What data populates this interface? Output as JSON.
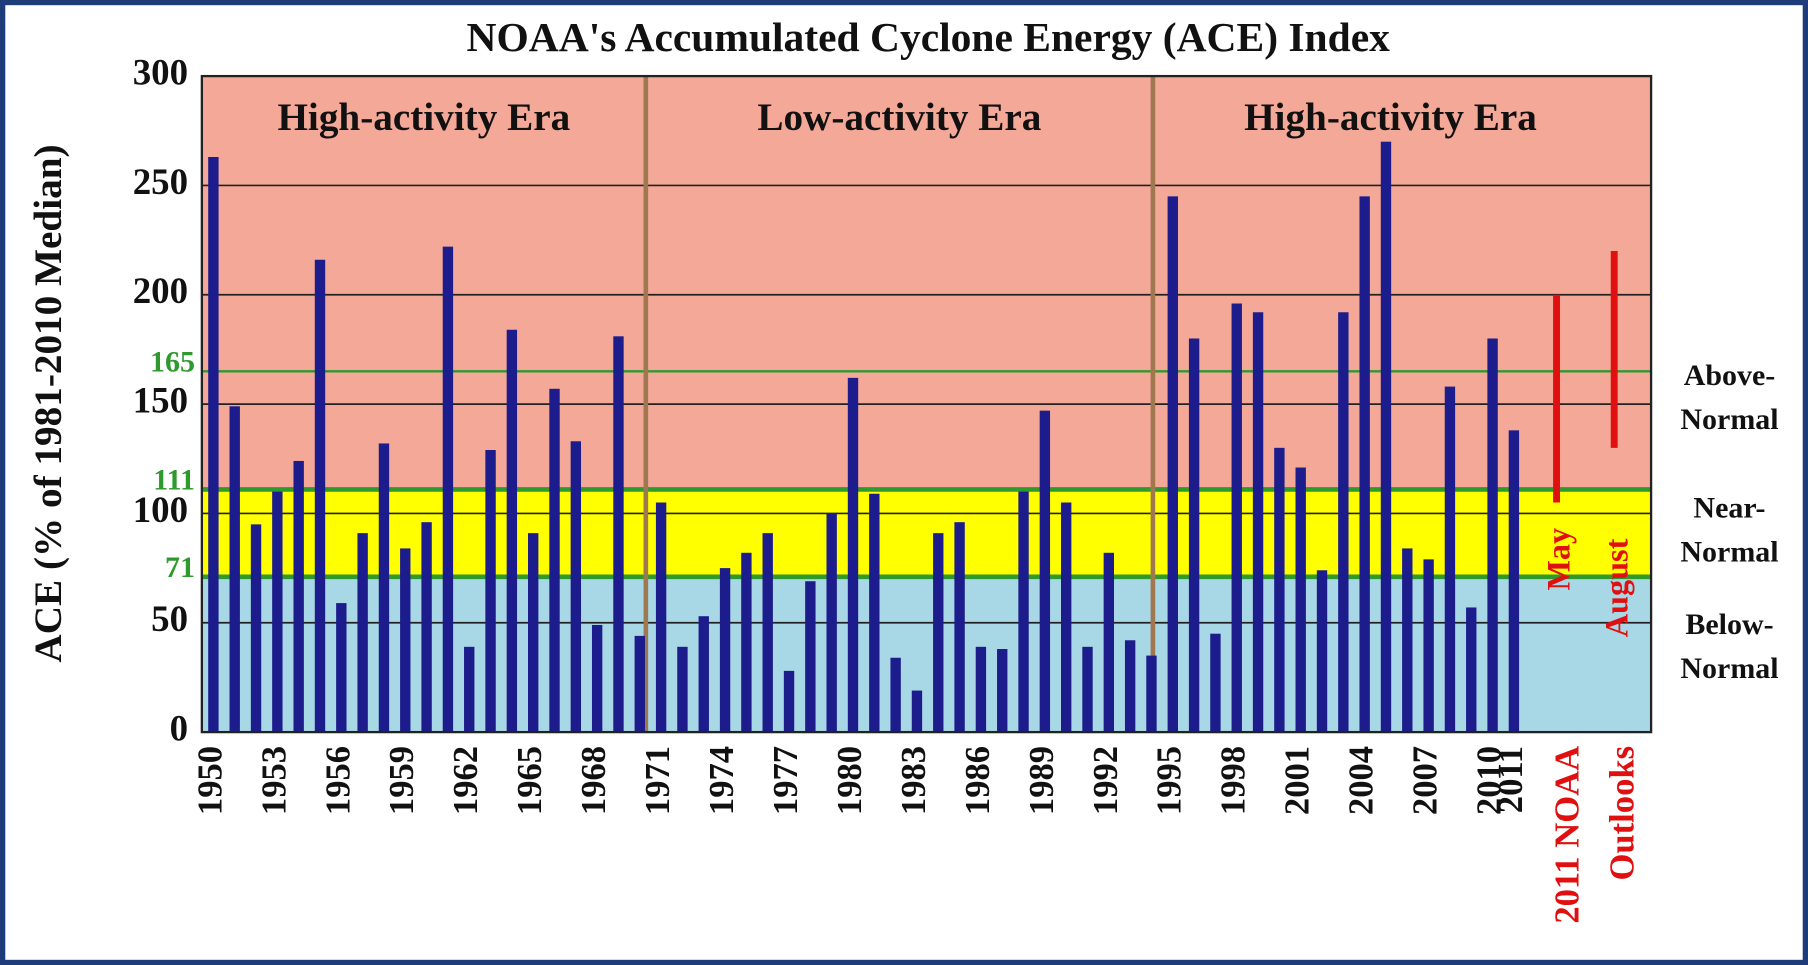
{
  "chart_data": {
    "type": "bar",
    "title": "NOAA's Accumulated Cyclone Energy (ACE) Index",
    "ylabel": "ACE (% of 1981-2010 Median)",
    "categories": [
      "1950",
      null,
      null,
      "1953",
      null,
      null,
      "1956",
      null,
      null,
      "1959",
      null,
      null,
      "1962",
      null,
      null,
      "1965",
      null,
      null,
      "1968",
      null,
      null,
      "1971",
      null,
      null,
      "1974",
      null,
      null,
      "1977",
      null,
      null,
      "1980",
      null,
      null,
      "1983",
      null,
      null,
      "1986",
      null,
      null,
      "1989",
      null,
      null,
      "1992",
      null,
      null,
      "1995",
      null,
      null,
      "1998",
      null,
      null,
      "2001",
      null,
      null,
      "2004",
      null,
      null,
      "2007",
      null,
      null,
      "2010",
      "2011"
    ],
    "values": [
      263,
      149,
      95,
      110,
      124,
      216,
      59,
      91,
      132,
      84,
      96,
      222,
      39,
      129,
      184,
      91,
      157,
      133,
      49,
      181,
      44,
      105,
      39,
      53,
      75,
      82,
      91,
      28,
      69,
      100,
      162,
      109,
      34,
      19,
      91,
      96,
      39,
      38,
      110,
      147,
      105,
      39,
      82,
      42,
      35,
      245,
      180,
      45,
      196,
      192,
      130,
      121,
      74,
      192,
      245,
      270,
      84,
      79,
      158,
      57,
      180,
      138
    ],
    "color": "#1c1c8c",
    "ylim": [
      0,
      300
    ],
    "yticks": [
      0,
      50,
      100,
      150,
      200,
      250,
      300
    ],
    "grid": true,
    "thresholds": [
      71,
      111,
      165
    ],
    "threshold_color": "#2e9a2e",
    "band_colors": [
      "#a8d8e6",
      "#ffff00",
      "#f4a898"
    ],
    "zones": [
      {
        "lines": [
          "Below-",
          "Normal"
        ]
      },
      {
        "lines": [
          "Near-",
          "Normal"
        ]
      },
      {
        "lines": [
          "Above-",
          "Normal"
        ]
      }
    ],
    "eras": [
      "High-activity Era",
      "Low-activity Era",
      "High-activity Era"
    ],
    "era_divider_color": "#a07850",
    "outlooks": {
      "label_lines": [
        "2011 NOAA",
        "Outlooks"
      ],
      "color": "#e01010",
      "ranges": [
        {
          "name": "May",
          "low": 105,
          "high": 200
        },
        {
          "name": "August",
          "low": 130,
          "high": 220
        }
      ]
    }
  }
}
